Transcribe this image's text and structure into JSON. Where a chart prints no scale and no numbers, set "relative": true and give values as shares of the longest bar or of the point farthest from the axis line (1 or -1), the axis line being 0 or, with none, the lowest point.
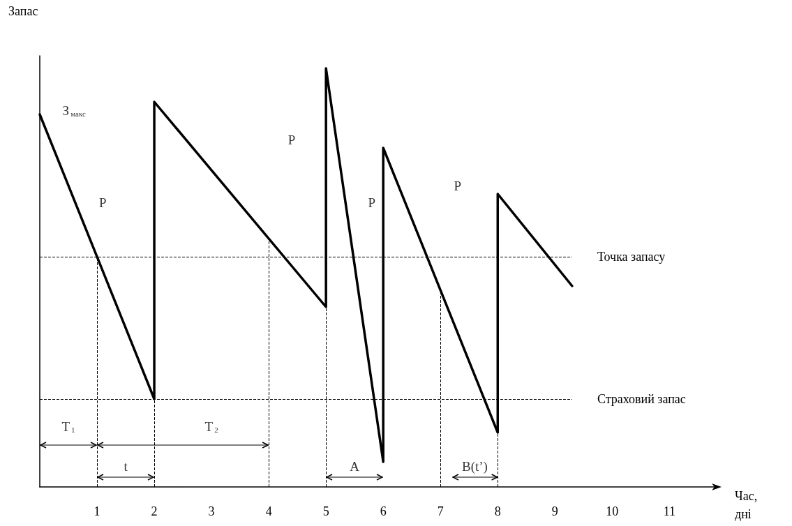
{
  "chart_data": {
    "type": "line",
    "relative": true,
    "xlabel": "Час,\nдні",
    "ylabel": "Запас",
    "xlim": [
      0,
      11.8
    ],
    "xticks": [
      1,
      2,
      3,
      4,
      5,
      6,
      7,
      8,
      9,
      10,
      11
    ],
    "grid": false,
    "marker": "none",
    "series": [
      {
        "color": "#000000",
        "x": [
          0,
          2,
          2,
          5,
          5,
          6,
          6,
          8,
          8,
          9.3
        ],
        "values": [
          0.89,
          0.21,
          0.92,
          0.43,
          1,
          0.06,
          0.81,
          0.13,
          0.7,
          0.48
        ]
      }
    ],
    "ref_lines": [
      {
        "axis": "y",
        "value": 0.55,
        "label": "Точка запасу",
        "line_style": "dashed"
      },
      {
        "axis": "y",
        "value": 0.21,
        "label": "Страховий запас",
        "line_style": "dashed"
      },
      {
        "axis": "x",
        "value": 1,
        "line_style": "dashed"
      },
      {
        "axis": "x",
        "value": 2,
        "line_style": "dashed"
      },
      {
        "axis": "x",
        "value": 4,
        "line_style": "dashed"
      },
      {
        "axis": "x",
        "value": 5,
        "line_style": "dashed"
      },
      {
        "axis": "x",
        "value": 7,
        "line_style": "dashed"
      },
      {
        "axis": "x",
        "value": 8,
        "line_style": "dashed"
      }
    ],
    "annotations": [
      "З$_{макс}$",
      "P",
      "P",
      "P",
      "P",
      "T$_{1}$",
      "T$_{2}$",
      "t",
      "A",
      "B(t’)"
    ]
  }
}
